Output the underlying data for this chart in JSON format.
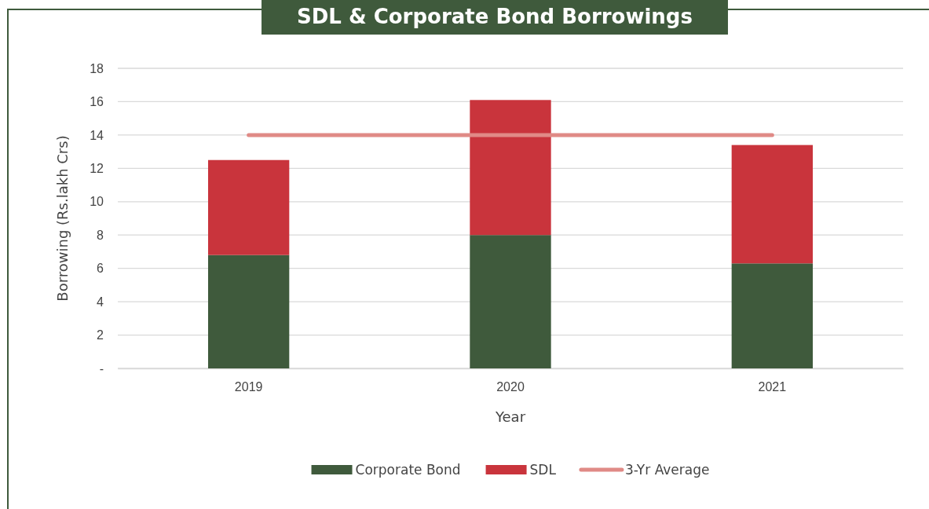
{
  "chart_data": {
    "type": "bar",
    "title": "SDL & Corporate Bond Borrowings",
    "xlabel": "Year",
    "ylabel": "Borrowing (Rs.lakh Crs)",
    "categories": [
      "2019",
      "2020",
      "2021"
    ],
    "stacked": true,
    "series": [
      {
        "name": "Corporate Bond",
        "color": "#3f5a3c",
        "values": [
          6.8,
          8.0,
          6.3
        ]
      },
      {
        "name": "SDL",
        "color": "#c9343c",
        "values": [
          5.7,
          8.1,
          7.1
        ]
      },
      {
        "name": "3-Yr Average",
        "type": "line",
        "color": "#e08a86",
        "values": [
          14.0,
          14.0,
          14.0
        ]
      }
    ],
    "ylim": [
      0,
      18
    ],
    "yticks": [
      {
        "value": 0,
        "label": "-"
      },
      2,
      4,
      6,
      8,
      10,
      12,
      14,
      16,
      18
    ],
    "grid": "y",
    "legend": "bottom"
  }
}
